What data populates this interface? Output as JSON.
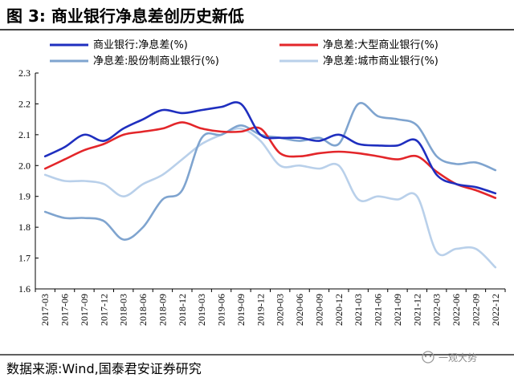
{
  "figure_title": "图 3:  商业银行净息差创历史新低",
  "source_text": "数据来源:Wind,国泰君安证券研究",
  "watermark_text": "一观大势",
  "chart_data": {
    "type": "line",
    "title": "商业银行净息差创历史新低",
    "xlabel": "",
    "ylabel": "",
    "ylim": [
      1.6,
      2.3
    ],
    "yticks": [
      "2.3",
      "2.2",
      "2.1",
      "2.0",
      "1.9",
      "1.8",
      "1.7",
      "1.6"
    ],
    "ytick_values": [
      2.3,
      2.2,
      2.1,
      2.0,
      1.9,
      1.8,
      1.7,
      1.6
    ],
    "grid": false,
    "legend_position": "top",
    "categories": [
      "2017-03",
      "2017-06",
      "2017-09",
      "2017-12",
      "2018-03",
      "2018-06",
      "2018-09",
      "2018-12",
      "2019-03",
      "2019-06",
      "2019-09",
      "2019-12",
      "2020-03",
      "2020-06",
      "2020-09",
      "2020-12",
      "2021-03",
      "2021-06",
      "2021-09",
      "2021-12",
      "2022-03",
      "2022-06",
      "2022-09",
      "2022-12"
    ],
    "series": [
      {
        "name": "商业银行:净息差(%)",
        "color": "#1f2fbf",
        "values": [
          2.03,
          2.06,
          2.1,
          2.08,
          2.12,
          2.15,
          2.18,
          2.17,
          2.18,
          2.19,
          2.2,
          2.1,
          2.09,
          2.09,
          2.08,
          2.1,
          2.07,
          2.065,
          2.065,
          2.08,
          1.97,
          1.94,
          1.93,
          1.91
        ]
      },
      {
        "name": "净息差:大型商业银行(%)",
        "color": "#e3262a",
        "values": [
          1.99,
          2.02,
          2.05,
          2.07,
          2.1,
          2.11,
          2.12,
          2.14,
          2.12,
          2.11,
          2.11,
          2.12,
          2.04,
          2.03,
          2.04,
          2.045,
          2.04,
          2.03,
          2.02,
          2.03,
          1.98,
          1.94,
          1.92,
          1.895
        ]
      },
      {
        "name": "净息差:股份制商业银行(%)",
        "color": "#7fa4cf",
        "values": [
          1.85,
          1.83,
          1.83,
          1.82,
          1.76,
          1.8,
          1.89,
          1.92,
          2.09,
          2.1,
          2.13,
          2.1,
          2.09,
          2.08,
          2.09,
          2.07,
          2.2,
          2.16,
          2.15,
          2.13,
          2.03,
          2.005,
          2.01,
          1.985
        ]
      },
      {
        "name": "净息差:城市商业银行(%)",
        "color": "#b9d0ea",
        "values": [
          1.97,
          1.95,
          1.95,
          1.94,
          1.9,
          1.94,
          1.97,
          2.02,
          2.07,
          2.1,
          2.12,
          2.08,
          2.0,
          2.0,
          1.99,
          2.0,
          1.89,
          1.9,
          1.89,
          1.9,
          1.72,
          1.73,
          1.73,
          1.67
        ]
      }
    ]
  }
}
